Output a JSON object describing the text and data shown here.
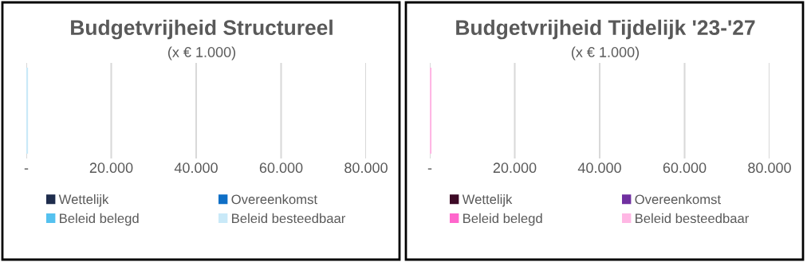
{
  "chart_data": [
    {
      "type": "bar",
      "orientation": "horizontal",
      "stacked": true,
      "title": "Budgetvrijheid Structureel",
      "subtitle": "(x € 1.000)",
      "categories": [
        null
      ],
      "series": [
        {
          "name": "Wettelijk",
          "color": "#1f2d4d",
          "values": [
            0
          ]
        },
        {
          "name": "Overeenkomst",
          "color": "#0f6fc6",
          "values": [
            0
          ]
        },
        {
          "name": "Beleid belegd",
          "color": "#55c1ef",
          "values": [
            0
          ]
        },
        {
          "name": "Beleid besteedbaar",
          "color": "#c9e9f8",
          "values": [
            400
          ]
        }
      ],
      "xlim": [
        0,
        80000
      ],
      "xticks": [
        {
          "value": 0,
          "label": "-"
        },
        {
          "value": 20000,
          "label": "20.000"
        },
        {
          "value": 40000,
          "label": "40.000"
        },
        {
          "value": 60000,
          "label": "60.000"
        },
        {
          "value": 80000,
          "label": "80.000"
        }
      ],
      "grid": "x",
      "legend": "bottom"
    },
    {
      "type": "bar",
      "orientation": "horizontal",
      "stacked": true,
      "title": "Budgetvrijheid Tijdelijk '23-'27",
      "subtitle": "(x € 1.000)",
      "categories": [
        null
      ],
      "series": [
        {
          "name": "Wettelijk",
          "color": "#3d0a26",
          "values": [
            0
          ]
        },
        {
          "name": "Overeenkomst",
          "color": "#7030a0",
          "values": [
            0
          ]
        },
        {
          "name": "Beleid belegd",
          "color": "#ff66cc",
          "values": [
            0
          ]
        },
        {
          "name": "Beleid besteedbaar",
          "color": "#ffb7e4",
          "values": [
            400
          ]
        }
      ],
      "xlim": [
        0,
        80000
      ],
      "xticks": [
        {
          "value": 0,
          "label": "-"
        },
        {
          "value": 20000,
          "label": "20.000"
        },
        {
          "value": 40000,
          "label": "40.000"
        },
        {
          "value": 60000,
          "label": "60.000"
        },
        {
          "value": 80000,
          "label": "80.000"
        }
      ],
      "grid": "x",
      "legend": "bottom"
    }
  ]
}
